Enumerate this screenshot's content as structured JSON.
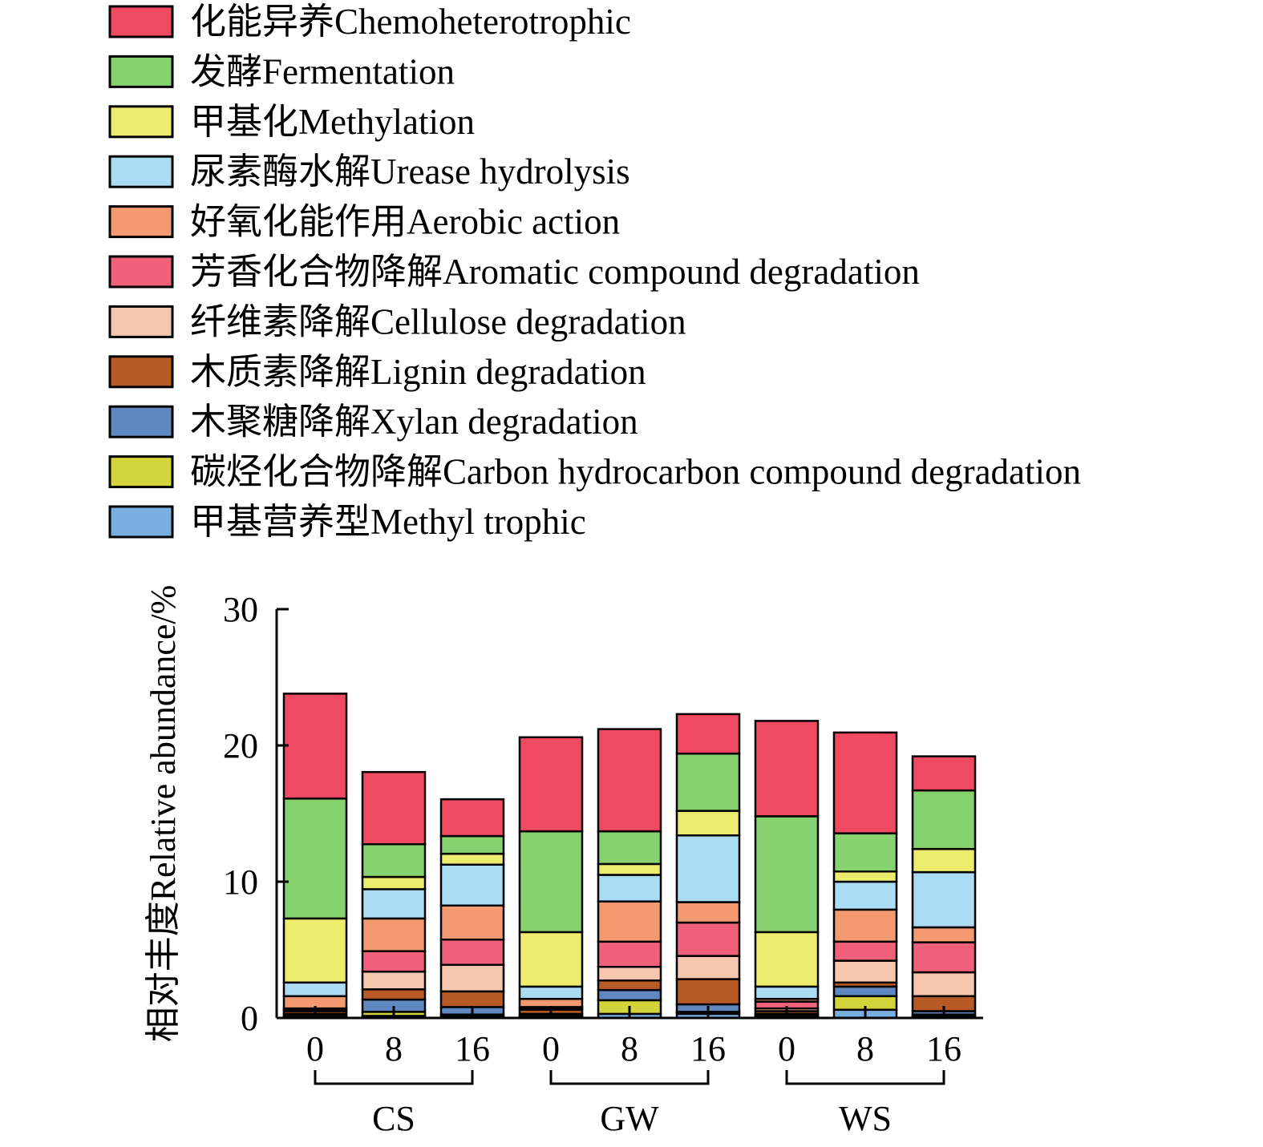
{
  "chart_data": {
    "type": "bar",
    "stacked": true,
    "ylabel": "相对丰度Relative abundance/%",
    "ylim": [
      0,
      30
    ],
    "yticks": [
      0,
      10,
      20,
      30
    ],
    "grid": false,
    "legend_position": "top",
    "groups": [
      {
        "name": "CS",
        "categories": [
          "0",
          "8",
          "16"
        ]
      },
      {
        "name": "GW",
        "categories": [
          "0",
          "8",
          "16"
        ]
      },
      {
        "name": "WS",
        "categories": [
          "0",
          "8",
          "16"
        ]
      }
    ],
    "categories": [
      "0",
      "8",
      "16",
      "0",
      "8",
      "16",
      "0",
      "8",
      "16"
    ],
    "series": [
      {
        "name": "甲基营养型Methyl trophic",
        "color": "#78aee0",
        "values": [
          0.1,
          0.15,
          0.15,
          0.1,
          0.3,
          0.3,
          0.1,
          0.6,
          0.15
        ]
      },
      {
        "name": "碳烃化合物降解Carbon hydrocarbon compound degradation",
        "color": "#d2d43a",
        "values": [
          0.1,
          0.3,
          0.1,
          0.1,
          1.0,
          0.15,
          0.1,
          1.0,
          0.1
        ]
      },
      {
        "name": "木聚糖降解Xylan degradation",
        "color": "#6088c0",
        "values": [
          0.1,
          0.9,
          0.55,
          0.1,
          0.75,
          0.55,
          0.1,
          0.7,
          0.25
        ]
      },
      {
        "name": "木质素降解Lignin degradation",
        "color": "#b85a26",
        "values": [
          0.2,
          0.75,
          1.15,
          0.3,
          0.7,
          1.85,
          0.2,
          0.3,
          1.1
        ]
      },
      {
        "name": "纤维素降解Cellulose degradation",
        "color": "#f6c6ae",
        "values": [
          0.1,
          1.3,
          1.95,
          0.1,
          1.0,
          1.7,
          0.2,
          1.6,
          1.75
        ]
      },
      {
        "name": "芳香化合物降解Aromatic compound degradation",
        "color": "#f0607a",
        "values": [
          0.1,
          1.5,
          1.85,
          0.1,
          1.85,
          2.45,
          0.5,
          1.4,
          2.2
        ]
      },
      {
        "name": "好氧化能作用Aerobic action",
        "color": "#f49a70",
        "values": [
          0.9,
          2.4,
          2.5,
          0.6,
          2.95,
          1.5,
          0.2,
          2.35,
          1.1
        ]
      },
      {
        "name": "尿素酶水解Urease hydrolysis",
        "color": "#aadcf4",
        "values": [
          1.0,
          2.15,
          3.0,
          0.9,
          1.95,
          4.9,
          0.9,
          2.05,
          4.05
        ]
      },
      {
        "name": "甲基化Methylation",
        "color": "#eeec6c",
        "values": [
          4.7,
          0.9,
          0.8,
          4.0,
          0.8,
          1.8,
          4.0,
          0.75,
          1.7
        ]
      },
      {
        "name": "发酵Fermentation",
        "color": "#86d26e",
        "values": [
          8.8,
          2.4,
          1.3,
          7.4,
          2.4,
          4.2,
          8.5,
          2.8,
          4.3
        ]
      },
      {
        "name": "化能异养Chemoheterotrophic",
        "color": "#f04a62",
        "values": [
          7.7,
          5.3,
          2.7,
          6.9,
          7.5,
          2.9,
          7.0,
          7.4,
          2.5
        ]
      }
    ],
    "legend_order": [
      "化能异养Chemoheterotrophic",
      "发酵Fermentation",
      "甲基化Methylation",
      "尿素酶水解Urease hydrolysis",
      "好氧化能作用Aerobic action",
      "芳香化合物降解Aromatic compound degradation",
      "纤维素降解Cellulose degradation",
      "木质素降解Lignin degradation",
      "木聚糖降解Xylan degradation",
      "碳烃化合物降解Carbon hydrocarbon compound degradation",
      "甲基营养型Methyl trophic"
    ]
  }
}
